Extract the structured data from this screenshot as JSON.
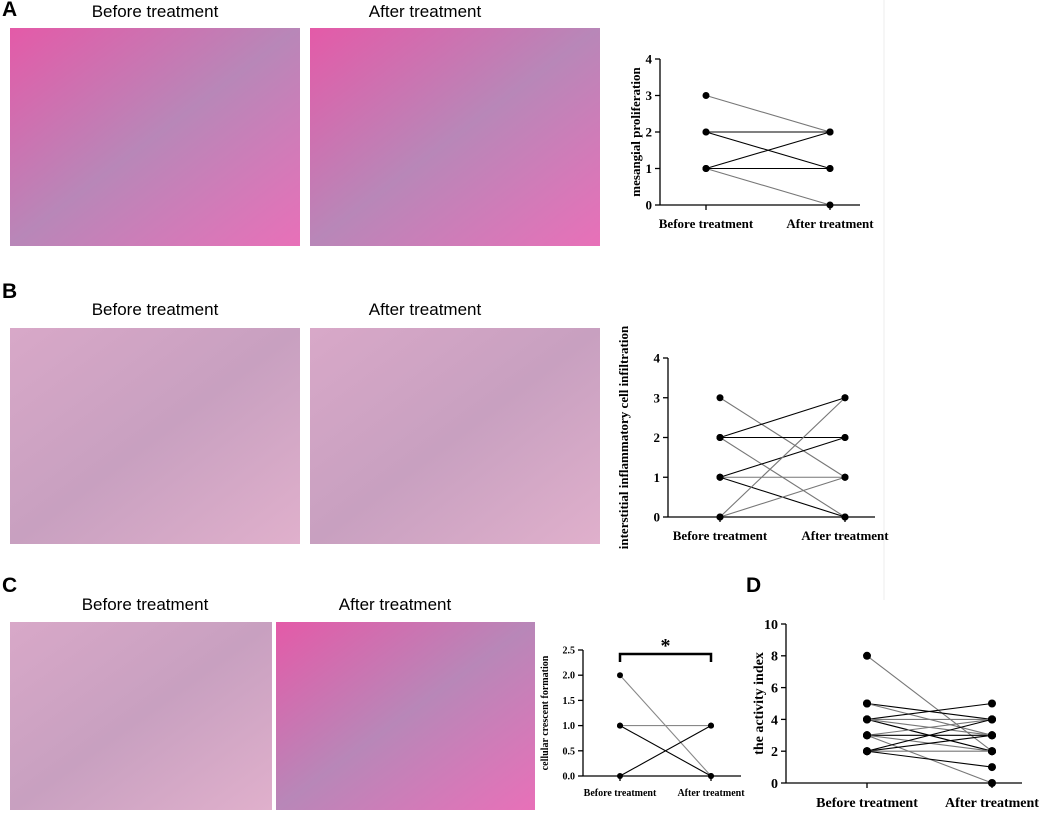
{
  "panels": [
    {
      "letter": "A",
      "captions": [
        "Before treatment",
        "After treatment"
      ]
    },
    {
      "letter": "B",
      "captions": [
        "Before treatment",
        "After treatment"
      ]
    },
    {
      "letter": "C",
      "captions": [
        "Before treatment",
        "After treatment"
      ]
    },
    {
      "letter": "D",
      "captions": []
    }
  ],
  "chart_data": [
    {
      "type": "paired",
      "ylabel": "mesangial proliferation",
      "categories": [
        "Before treatment",
        "After treatment"
      ],
      "ylim": [
        0,
        4
      ],
      "yticks": [
        0,
        1,
        2,
        3,
        4
      ],
      "series": [
        {
          "color": "#777",
          "values": [
            3,
            2
          ]
        },
        {
          "color": "#000",
          "values": [
            2,
            2
          ]
        },
        {
          "color": "#000",
          "values": [
            2,
            1
          ]
        },
        {
          "color": "#000",
          "values": [
            1,
            2
          ]
        },
        {
          "color": "#000",
          "values": [
            1,
            1
          ]
        },
        {
          "color": "#777",
          "values": [
            1,
            0
          ]
        }
      ]
    },
    {
      "type": "paired",
      "ylabel": "interstitial inflammatory cell infiltration",
      "categories": [
        "Before treatment",
        "After treatment"
      ],
      "ylim": [
        0,
        4
      ],
      "yticks": [
        0,
        1,
        2,
        3,
        4
      ],
      "series": [
        {
          "color": "#777",
          "values": [
            3,
            1
          ]
        },
        {
          "color": "#000",
          "values": [
            2,
            3
          ]
        },
        {
          "color": "#000",
          "values": [
            2,
            2
          ]
        },
        {
          "color": "#777",
          "values": [
            2,
            0
          ]
        },
        {
          "color": "#000",
          "values": [
            1,
            2
          ]
        },
        {
          "color": "#777",
          "values": [
            1,
            1
          ]
        },
        {
          "color": "#000",
          "values": [
            1,
            0
          ]
        },
        {
          "color": "#777",
          "values": [
            0,
            3
          ]
        },
        {
          "color": "#777",
          "values": [
            0,
            1
          ]
        }
      ]
    },
    {
      "type": "paired",
      "ylabel": "cellular crescent formation",
      "categories": [
        "Before treatment",
        "After treatment"
      ],
      "ylim": [
        0,
        2.5
      ],
      "yticks": [
        {
          "value": 0,
          "label": "0.0"
        },
        {
          "value": 0.5,
          "label": "0.5"
        },
        {
          "value": 1,
          "label": "1.0"
        },
        {
          "value": 1.5,
          "label": "1.5"
        },
        {
          "value": 2,
          "label": "2.0"
        },
        {
          "value": 2.5,
          "label": "2.5"
        }
      ],
      "significance": "*",
      "series": [
        {
          "color": "#888",
          "values": [
            2,
            0
          ]
        },
        {
          "color": "#888",
          "values": [
            1,
            1
          ]
        },
        {
          "color": "#000",
          "values": [
            1,
            0
          ]
        },
        {
          "color": "#000",
          "values": [
            0,
            1
          ]
        }
      ]
    },
    {
      "type": "paired",
      "ylabel": "the activity index",
      "categories": [
        "Before treatment",
        "After treatment"
      ],
      "ylim": [
        0,
        10
      ],
      "yticks": [
        0,
        2,
        4,
        6,
        8,
        10
      ],
      "series": [
        {
          "color": "#777",
          "values": [
            8,
            2
          ]
        },
        {
          "color": "#000",
          "values": [
            5,
            4
          ]
        },
        {
          "color": "#777",
          "values": [
            5,
            3
          ]
        },
        {
          "color": "#000",
          "values": [
            4,
            5
          ]
        },
        {
          "color": "#777",
          "values": [
            4,
            4
          ]
        },
        {
          "color": "#000",
          "values": [
            4,
            2
          ]
        },
        {
          "color": "#777",
          "values": [
            3,
            4
          ]
        },
        {
          "color": "#000",
          "values": [
            3,
            3
          ]
        },
        {
          "color": "#777",
          "values": [
            3,
            2
          ]
        },
        {
          "color": "#777",
          "values": [
            3,
            0
          ]
        },
        {
          "color": "#000",
          "values": [
            2,
            3
          ]
        },
        {
          "color": "#777",
          "values": [
            2,
            2
          ]
        },
        {
          "color": "#000",
          "values": [
            2,
            1
          ]
        },
        {
          "color": "#777",
          "values": [
            4,
            3
          ]
        },
        {
          "color": "#000",
          "values": [
            2,
            4
          ]
        }
      ]
    }
  ]
}
